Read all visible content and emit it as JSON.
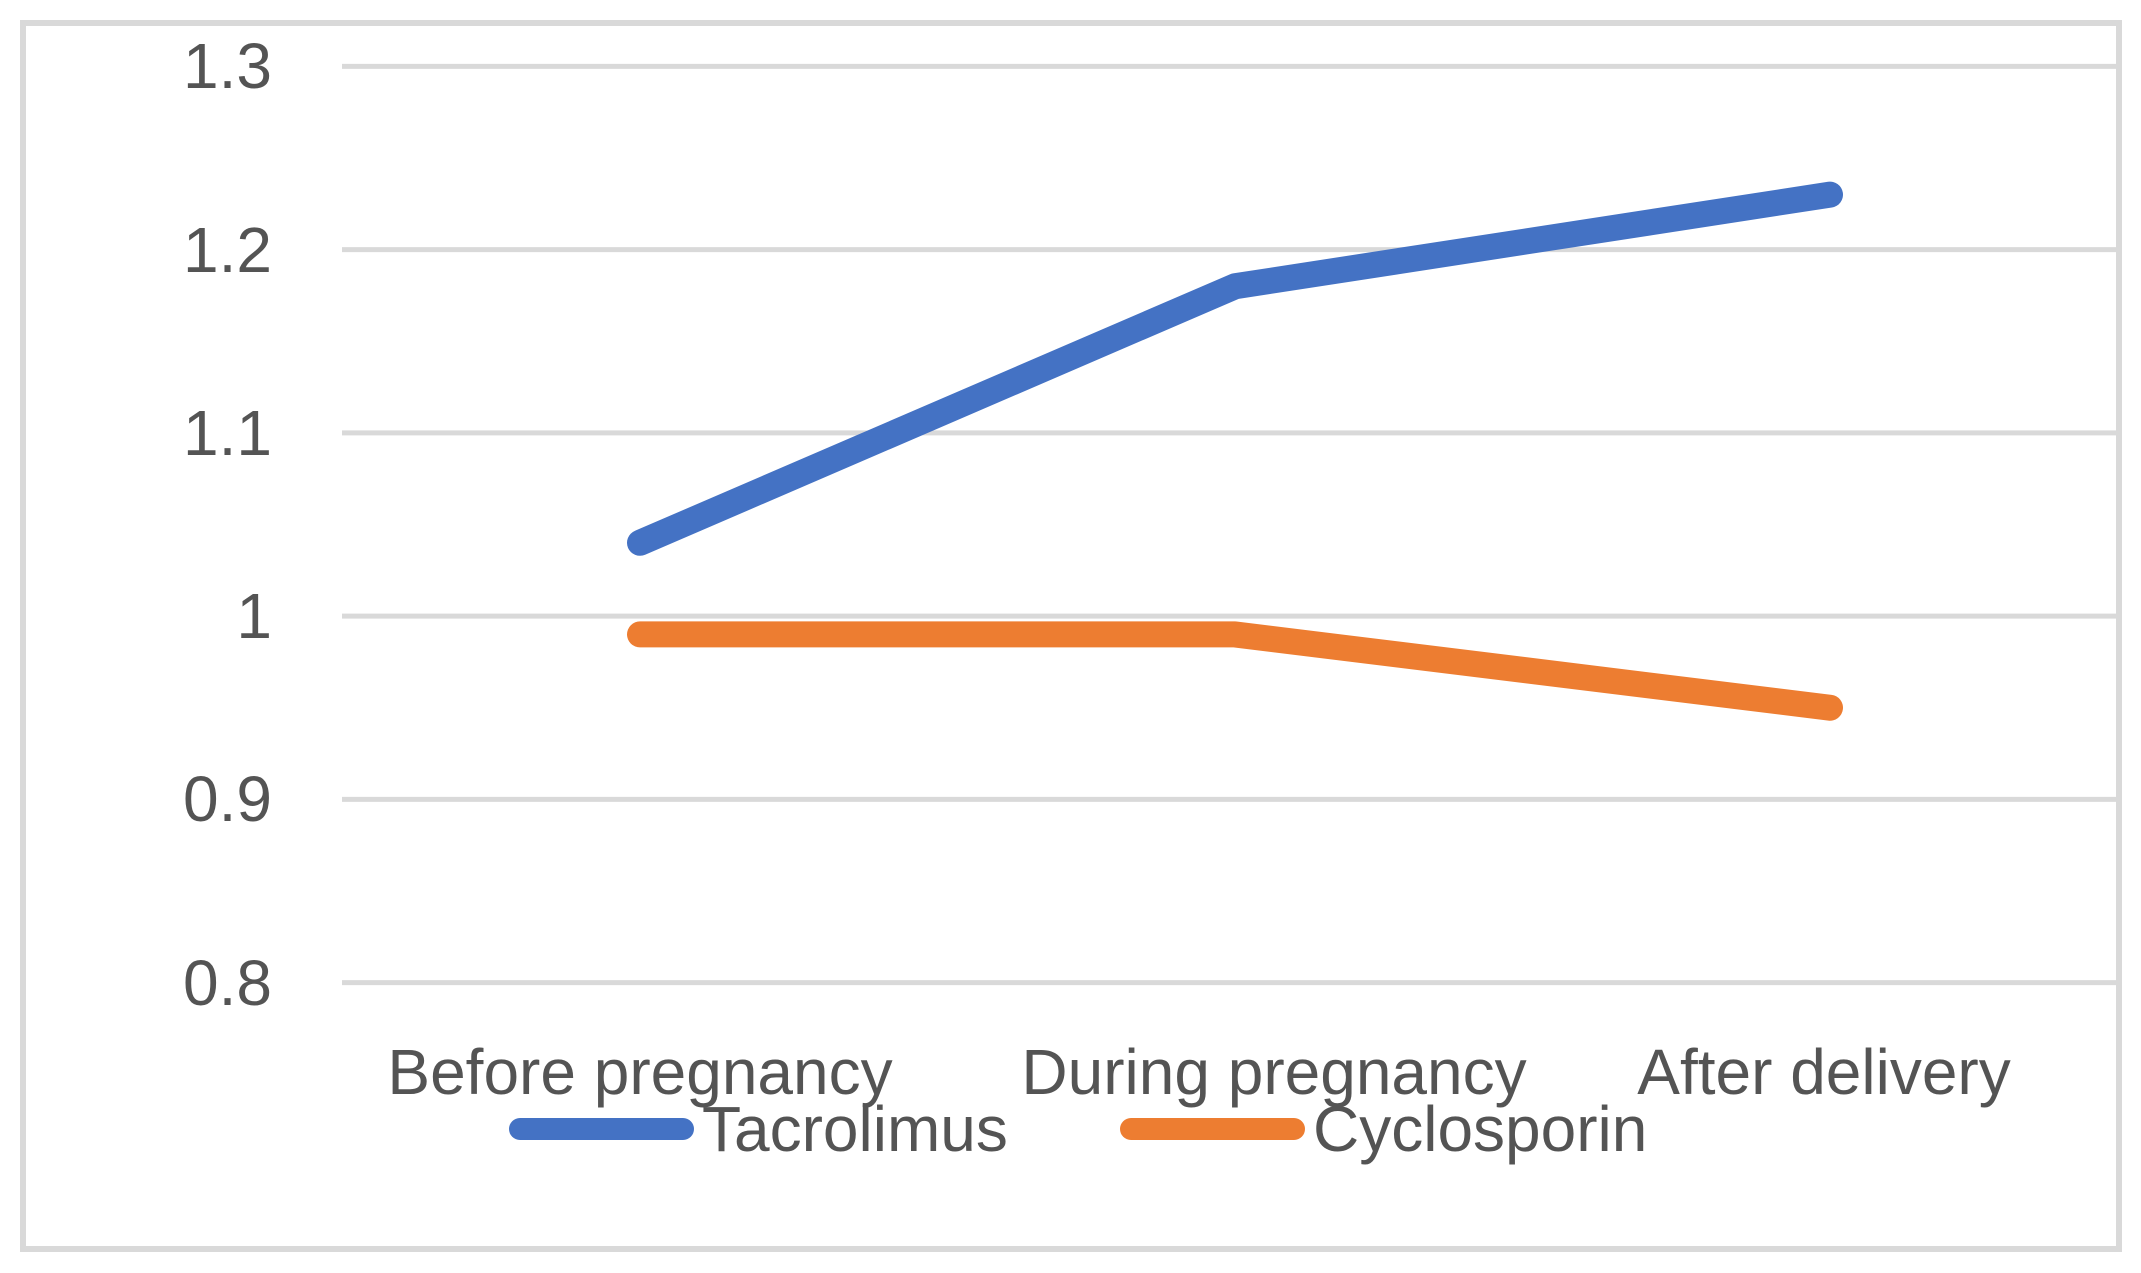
{
  "chart_data": {
    "type": "line",
    "title": "",
    "categories": [
      "Before pregnancy",
      "During pregnancy",
      "After delivery"
    ],
    "series": [
      {
        "name": "Tacrolimus",
        "color": "#4472C4",
        "values": [
          1.04,
          1.18,
          1.23
        ]
      },
      {
        "name": "Cyclosporin",
        "color": "#ED7D31",
        "values": [
          0.99,
          0.99,
          0.95
        ]
      }
    ],
    "y_ticks": [
      {
        "label": "1.3",
        "value": 1.3
      },
      {
        "label": "1.2",
        "value": 1.2
      },
      {
        "label": "1.1",
        "value": 1.1
      },
      {
        "label": "1",
        "value": 1.0
      },
      {
        "label": "0.9",
        "value": 0.9
      },
      {
        "label": "0.8",
        "value": 0.8
      }
    ],
    "ylim": [
      0.8,
      1.3
    ],
    "grid": true,
    "gridline_color": "#d9d9d9",
    "frame_color": "#d9d9d9",
    "text_color": "#545454",
    "legend_position": "bottom"
  }
}
